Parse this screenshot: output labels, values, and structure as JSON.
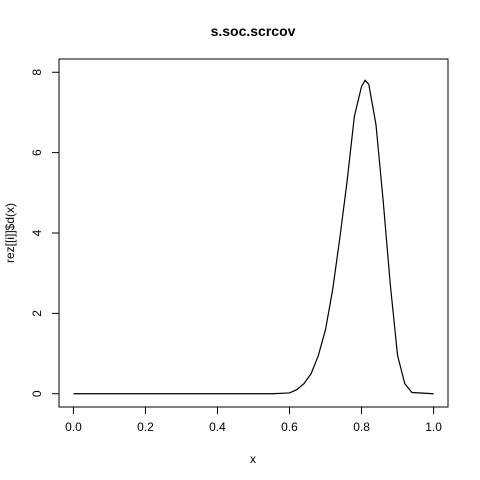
{
  "chart_data": {
    "type": "line",
    "title": "s.soc.scrcov",
    "xlabel": "x",
    "ylabel": "rez[[i]]$d(x)",
    "xlim": [
      -0.04,
      1.04
    ],
    "ylim": [
      -0.33,
      8.33
    ],
    "x_ticks": [
      "0.0",
      "0.2",
      "0.4",
      "0.6",
      "0.8",
      "1.0"
    ],
    "y_ticks": [
      "0",
      "2",
      "4",
      "6",
      "8"
    ],
    "series": [
      {
        "x": [
          0.0,
          0.05,
          0.1,
          0.15,
          0.2,
          0.25,
          0.3,
          0.35,
          0.4,
          0.45,
          0.5,
          0.55,
          0.6,
          0.62,
          0.64,
          0.66,
          0.68,
          0.7,
          0.72,
          0.74,
          0.76,
          0.78,
          0.8,
          0.81,
          0.82,
          0.84,
          0.86,
          0.88,
          0.9,
          0.92,
          0.94,
          1.0
        ],
        "y": [
          0,
          0,
          0,
          0,
          0,
          0,
          0,
          0,
          0,
          0,
          0,
          0,
          0.02,
          0.1,
          0.25,
          0.5,
          0.95,
          1.6,
          2.6,
          3.9,
          5.3,
          6.9,
          7.65,
          7.8,
          7.7,
          6.7,
          4.8,
          2.7,
          0.95,
          0.25,
          0.03,
          0
        ]
      }
    ],
    "grid": false,
    "legend": "none"
  }
}
